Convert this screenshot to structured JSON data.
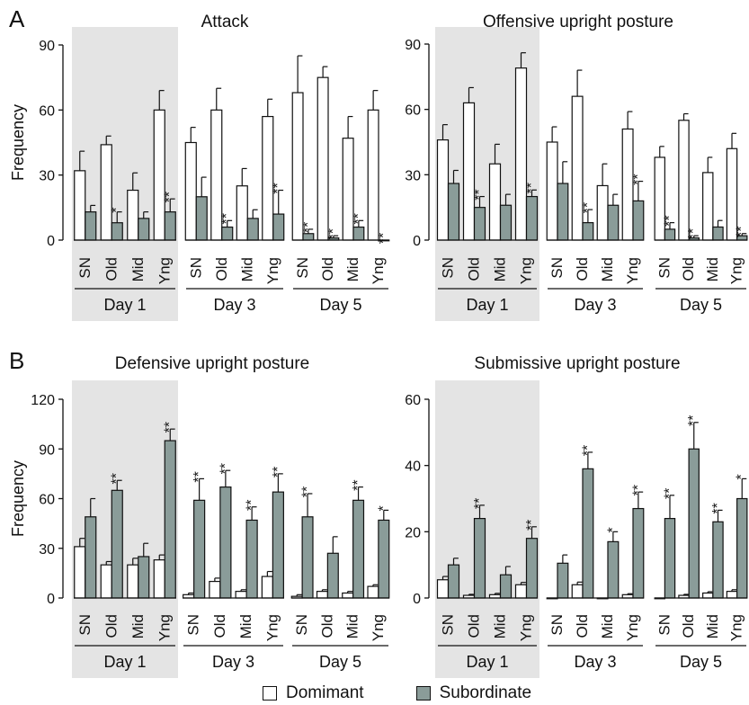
{
  "panel_labels": [
    "A",
    "B"
  ],
  "colors": {
    "dominant": "#ffffff",
    "subordinate": "#8a9c99",
    "shade": "#e4e4e4",
    "ink": "#111111"
  },
  "legend": {
    "dominant": "Domimant",
    "subordinate": "Subordinate"
  },
  "chart_data": [
    {
      "type": "bar",
      "title": "Attack",
      "ylabel": "Frequency",
      "ylim": [
        0,
        90
      ],
      "yticks": [
        "0",
        "30",
        "60",
        "90"
      ],
      "groups": [
        "Day 1",
        "Day 3",
        "Day 5"
      ],
      "categories": [
        "SN",
        "Old",
        "Mid",
        "Yng"
      ],
      "shaded_group": "Day 1",
      "series": [
        {
          "name": "Domimant",
          "values": [
            [
              32,
              44,
              23,
              60
            ],
            [
              45,
              60,
              25,
              57
            ],
            [
              68,
              75,
              47,
              60
            ]
          ],
          "errors": [
            [
              9,
              4,
              8,
              9
            ],
            [
              7,
              10,
              8,
              8
            ],
            [
              17,
              5,
              10,
              9
            ]
          ]
        },
        {
          "name": "Subordinate",
          "values": [
            [
              13,
              8,
              10,
              13
            ],
            [
              20,
              6,
              10,
              12
            ],
            [
              3,
              1,
              6,
              0
            ]
          ],
          "errors": [
            [
              3,
              5,
              3,
              6
            ],
            [
              9,
              3,
              4,
              11
            ],
            [
              2,
              1,
              3,
              0
            ]
          ]
        }
      ],
      "annotations": [
        [
          "",
          "*",
          "",
          "**"
        ],
        [
          "",
          "**",
          "",
          "**"
        ],
        [
          "**",
          "**",
          "**",
          "**"
        ]
      ]
    },
    {
      "type": "bar",
      "title": "Offensive upright posture",
      "ylabel": "",
      "ylim": [
        0,
        90
      ],
      "yticks": [
        "0",
        "30",
        "60",
        "90"
      ],
      "groups": [
        "Day 1",
        "Day 3",
        "Day 5"
      ],
      "categories": [
        "SN",
        "Old",
        "Mid",
        "Yng"
      ],
      "shaded_group": "Day 1",
      "series": [
        {
          "name": "Domimant",
          "values": [
            [
              46,
              63,
              35,
              79
            ],
            [
              45,
              66,
              25,
              51
            ],
            [
              38,
              55,
              31,
              42
            ]
          ],
          "errors": [
            [
              7,
              7,
              9,
              7
            ],
            [
              7,
              12,
              10,
              8
            ],
            [
              5,
              3,
              7,
              7
            ]
          ]
        },
        {
          "name": "Subordinate",
          "values": [
            [
              26,
              15,
              16,
              20
            ],
            [
              26,
              8,
              16,
              18
            ],
            [
              5,
              1,
              6,
              2
            ]
          ],
          "errors": [
            [
              6,
              5,
              5,
              3
            ],
            [
              10,
              6,
              5,
              9
            ],
            [
              3,
              1,
              3,
              1
            ]
          ]
        }
      ],
      "annotations": [
        [
          "",
          "**",
          "",
          "**"
        ],
        [
          "",
          "**",
          "",
          "**"
        ],
        [
          "**",
          "**",
          "",
          "**"
        ]
      ]
    },
    {
      "type": "bar",
      "title": "Defensive upright posture",
      "ylabel": "Frequency",
      "ylim": [
        0,
        120
      ],
      "yticks": [
        "0",
        "30",
        "60",
        "90",
        "120"
      ],
      "groups": [
        "Day 1",
        "Day 3",
        "Day 5"
      ],
      "categories": [
        "SN",
        "Old",
        "Mid",
        "Yng"
      ],
      "shaded_group": "Day 1",
      "series": [
        {
          "name": "Domimant",
          "values": [
            [
              31,
              20,
              20,
              23
            ],
            [
              2,
              10,
              4,
              13
            ],
            [
              1,
              4,
              3,
              7
            ]
          ],
          "errors": [
            [
              5,
              2,
              4,
              3
            ],
            [
              1,
              2,
              1,
              3
            ],
            [
              1,
              1,
              1,
              1
            ]
          ]
        },
        {
          "name": "Subordinate",
          "values": [
            [
              49,
              65,
              25,
              95
            ],
            [
              59,
              67,
              47,
              64
            ],
            [
              49,
              27,
              59,
              47
            ]
          ],
          "errors": [
            [
              11,
              6,
              8,
              7
            ],
            [
              13,
              10,
              8,
              11
            ],
            [
              14,
              10,
              8,
              6
            ]
          ]
        }
      ],
      "annotations": [
        [
          "",
          "**",
          "",
          "**"
        ],
        [
          "**",
          "**",
          "**",
          "**"
        ],
        [
          "**",
          "",
          "**",
          "*"
        ]
      ]
    },
    {
      "type": "bar",
      "title": "Submissive upright posture",
      "ylabel": "",
      "ylim": [
        0,
        60
      ],
      "yticks": [
        "0",
        "20",
        "40",
        "60"
      ],
      "groups": [
        "Day 1",
        "Day 3",
        "Day 5"
      ],
      "categories": [
        "SN",
        "Old",
        "Mid",
        "Yng"
      ],
      "shaded_group": "Day 1",
      "series": [
        {
          "name": "Domimant",
          "values": [
            [
              5.5,
              0.8,
              1,
              4
            ],
            [
              0,
              4,
              0,
              1
            ],
            [
              0,
              0.8,
              1.5,
              2
            ]
          ],
          "errors": [
            [
              1,
              0.3,
              0.4,
              0.7
            ],
            [
              0,
              0.8,
              0,
              0.3
            ],
            [
              0,
              0.3,
              0.4,
              0.5
            ]
          ]
        },
        {
          "name": "Subordinate",
          "values": [
            [
              10,
              24,
              7,
              18
            ],
            [
              10.5,
              39,
              17,
              27
            ],
            [
              24,
              45,
              23,
              30
            ]
          ],
          "errors": [
            [
              2,
              4,
              2.5,
              3.5
            ],
            [
              2.5,
              5,
              3,
              5
            ],
            [
              7,
              8,
              3.5,
              6
            ]
          ]
        }
      ],
      "annotations": [
        [
          "",
          "**",
          "",
          "**"
        ],
        [
          "",
          "**",
          "*",
          "**"
        ],
        [
          "**",
          "**",
          "**",
          "*"
        ]
      ]
    }
  ]
}
